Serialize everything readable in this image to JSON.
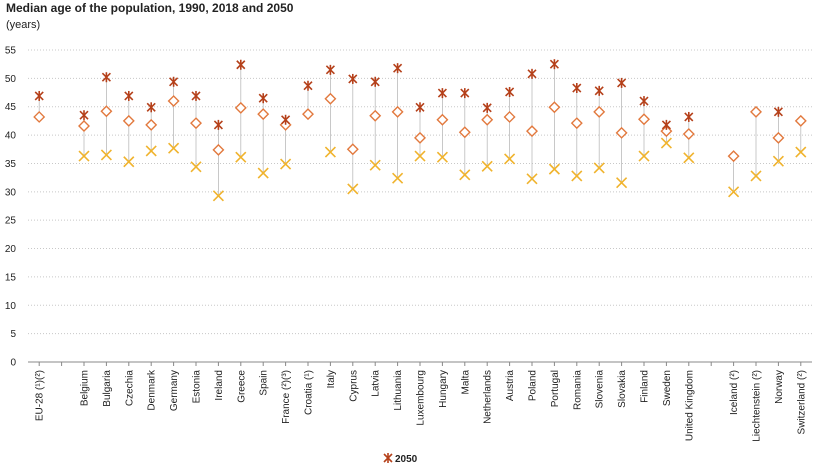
{
  "chart_data": {
    "type": "dot",
    "title": "Median age of the population, 1990, 2018 and 2050",
    "subtitle": "(years)",
    "categories": [
      "EU-28 (¹)(²)",
      null,
      "Belgium",
      "Bulgaria",
      "Czechia",
      "Denmark",
      "Germany",
      "Estonia",
      "Ireland",
      "Greece",
      "Spain",
      "France (²)(³)",
      "Croatia (¹)",
      "Italy",
      "Cyprus",
      "Latvia",
      "Lithuania",
      "Luxembourg",
      "Hungary",
      "Malta",
      "Netherlands",
      "Austria",
      "Poland",
      "Portugal",
      "Romania",
      "Slovenia",
      "Slovakia",
      "Finland",
      "Sweden",
      "United Kingdom",
      null,
      "Iceland (²)",
      "Liechtenstein (²)",
      "Norway",
      "Switzerland (²)"
    ],
    "series": [
      {
        "marker": "cross",
        "color": "#f0b32d",
        "values": [
          null,
          null,
          36.3,
          36.5,
          35.3,
          37.2,
          37.7,
          34.4,
          29.3,
          36.1,
          33.3,
          34.9,
          null,
          37.0,
          30.5,
          34.7,
          32.4,
          36.3,
          36.1,
          33.0,
          34.5,
          35.8,
          32.3,
          34.0,
          32.8,
          34.2,
          31.6,
          36.3,
          38.6,
          36.0,
          null,
          30.0,
          32.8,
          35.4,
          37.0
        ]
      },
      {
        "marker": "diamond",
        "color": "#e2793e",
        "values": [
          43.2,
          null,
          41.6,
          44.2,
          42.5,
          41.8,
          46.0,
          42.1,
          37.4,
          44.8,
          43.7,
          41.8,
          43.7,
          46.4,
          37.5,
          43.4,
          44.1,
          39.5,
          42.7,
          40.5,
          42.7,
          43.2,
          40.7,
          44.9,
          42.1,
          44.1,
          40.4,
          42.8,
          40.7,
          40.2,
          null,
          36.3,
          44.1,
          39.5,
          42.5
        ]
      },
      {
        "name": "2050",
        "marker": "asterisk",
        "color": "#b5401a",
        "values": [
          46.9,
          null,
          43.5,
          50.2,
          46.9,
          44.9,
          49.4,
          46.9,
          41.8,
          52.4,
          46.5,
          42.7,
          48.7,
          51.5,
          49.9,
          49.4,
          51.8,
          44.9,
          47.4,
          47.4,
          44.8,
          47.6,
          50.8,
          52.5,
          48.3,
          47.8,
          49.2,
          46.0,
          41.8,
          43.2,
          null,
          null,
          null,
          44.1,
          null
        ]
      }
    ],
    "ylim": [
      0,
      55
    ],
    "yticks": [
      0,
      5,
      10,
      15,
      20,
      25,
      30,
      35,
      40,
      45,
      50,
      55
    ],
    "grid": true
  }
}
